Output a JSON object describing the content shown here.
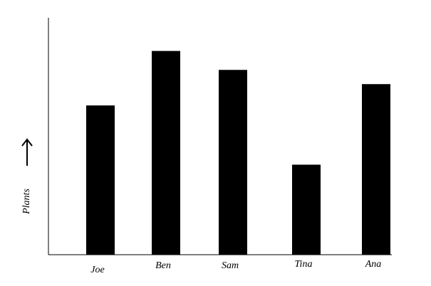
{
  "chart_data": {
    "type": "bar",
    "y_label": "Plants",
    "categories": [
      "Joe",
      "Ben",
      "Sam",
      "Tina",
      "Ana"
    ],
    "values": [
      6.3,
      8.6,
      7.8,
      3.8,
      7.2
    ],
    "color": "#000000",
    "ylim": [
      0,
      10
    ]
  }
}
